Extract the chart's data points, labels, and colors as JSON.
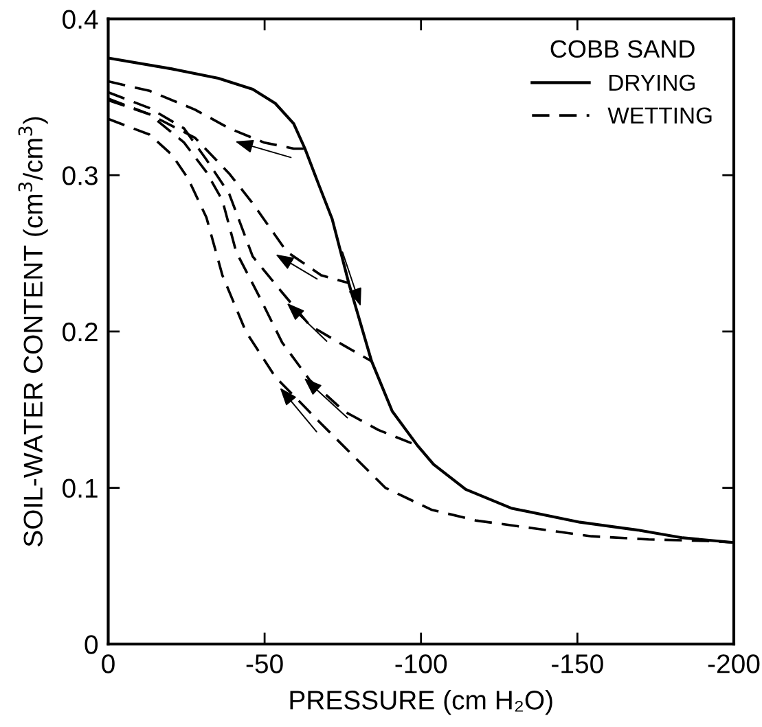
{
  "chart_data": {
    "type": "line",
    "xlabel": "PRESSURE (cm H₂O)",
    "ylabel": "SOIL-WATER CONTENT (cm$^{3}$/cm$^{3}$)",
    "legend_title": "COBB SAND",
    "legend": "top right",
    "grid": false,
    "marker": "none",
    "xlim": [
      0,
      -200
    ],
    "ylim": [
      0,
      0.4
    ],
    "xticks": [
      0,
      -50,
      -100,
      -150,
      -200
    ],
    "yticks": [
      0,
      0.1,
      0.2,
      0.3,
      0.4
    ],
    "series": [
      {
        "name": "DRYING",
        "color": "#000000",
        "line_style": "solid",
        "x": [
          0,
          -20.4,
          -35.2,
          -46.2,
          -53.4,
          -59.3,
          -62.9,
          -67.3,
          -71.6,
          -76.9,
          -84.2,
          -90.8,
          -98.9,
          -104.0,
          -114.3,
          -128.8,
          -150.8,
          -169.2,
          -183.7,
          -200
        ],
        "values": [
          0.375,
          0.368,
          0.362,
          0.355,
          0.346,
          0.333,
          0.317,
          0.294,
          0.272,
          0.231,
          0.181,
          0.149,
          0.127,
          0.115,
          0.099,
          0.087,
          0.078,
          0.073,
          0.068,
          0.065
        ]
      },
      {
        "name": "WETTING",
        "color": "#000000",
        "line_style": "dashed",
        "x": [
          0,
          -13.2,
          -27.7,
          -38.7,
          -49.7,
          -59.3,
          -62.9
        ],
        "values": [
          0.36,
          0.354,
          0.342,
          0.33,
          0.321,
          0.317,
          0.317
        ]
      },
      {
        "color": "#000000",
        "line_style": "dashed",
        "x": [
          0,
          -13.2,
          -27.7,
          -38.7,
          -46.2,
          -57.1,
          -68.1,
          -76.9
        ],
        "values": [
          0.348,
          0.339,
          0.324,
          0.301,
          0.282,
          0.251,
          0.236,
          0.231
        ]
      },
      {
        "color": "#000000",
        "line_style": "dashed",
        "x": [
          0,
          -13.2,
          -24.2,
          -31.4,
          -38.7,
          -46.2,
          -55.6,
          -64.4,
          -75.4,
          -84.2
        ],
        "values": [
          0.353,
          0.343,
          0.33,
          0.31,
          0.288,
          0.248,
          0.225,
          0.204,
          0.191,
          0.181
        ]
      },
      {
        "color": "#000000",
        "line_style": "dashed",
        "x": [
          0,
          -13.2,
          -24.2,
          -31.4,
          -36.5,
          -40.9,
          -48.4,
          -55.6,
          -64.4,
          -75.4,
          -86.4,
          -98.9
        ],
        "values": [
          0.349,
          0.339,
          0.321,
          0.302,
          0.284,
          0.251,
          0.222,
          0.193,
          0.169,
          0.149,
          0.137,
          0.127
        ]
      },
      {
        "color": "#000000",
        "line_style": "dashed",
        "x": [
          0,
          -13.2,
          -20.4,
          -25.5,
          -31.4,
          -36.5,
          -44.0,
          -53.4,
          -68.1,
          -82.6,
          -88.6,
          -103.3,
          -117.8,
          -136.3,
          -154.5,
          -172.7,
          -191.2,
          -200
        ],
        "values": [
          0.336,
          0.326,
          0.313,
          0.298,
          0.273,
          0.236,
          0.2,
          0.171,
          0.141,
          0.112,
          0.1,
          0.086,
          0.079,
          0.074,
          0.069,
          0.067,
          0.066,
          0.065
        ]
      }
    ]
  }
}
